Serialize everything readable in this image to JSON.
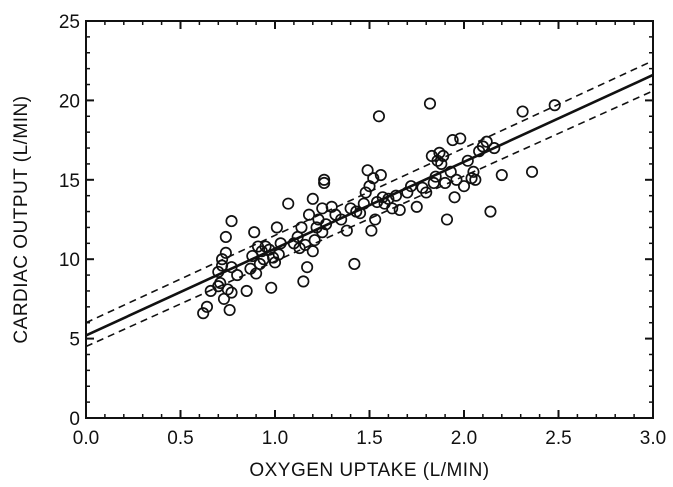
{
  "chart_data": {
    "type": "scatter",
    "title": "",
    "xlabel": "OXYGEN UPTAKE (L/MIN)",
    "ylabel": "CARDIAC OUTPUT (L/MIN)",
    "xlim": [
      0.0,
      3.0
    ],
    "ylim": [
      0,
      25
    ],
    "x_ticks": [
      0.0,
      0.5,
      1.0,
      1.5,
      2.0,
      2.5,
      3.0
    ],
    "x_tick_labels": [
      "0.0",
      "0.5",
      "1.0",
      "1.5",
      "2.0",
      "2.5",
      "3.0"
    ],
    "y_ticks": [
      0,
      5,
      10,
      15,
      20,
      25
    ],
    "y_tick_labels": [
      "0",
      "5",
      "10",
      "15",
      "20",
      "25"
    ],
    "grid": false,
    "marker": "open-circle",
    "colors": {
      "ink": "#111111",
      "background": "#ffffff"
    },
    "points": [
      [
        0.62,
        6.6
      ],
      [
        0.64,
        7.0
      ],
      [
        0.66,
        8.0
      ],
      [
        0.7,
        8.3
      ],
      [
        0.7,
        9.2
      ],
      [
        0.71,
        8.5
      ],
      [
        0.72,
        9.6
      ],
      [
        0.72,
        10.0
      ],
      [
        0.73,
        7.5
      ],
      [
        0.74,
        10.4
      ],
      [
        0.74,
        11.4
      ],
      [
        0.75,
        8.1
      ],
      [
        0.76,
        6.8
      ],
      [
        0.77,
        7.9
      ],
      [
        0.77,
        9.5
      ],
      [
        0.77,
        12.4
      ],
      [
        0.8,
        9.0
      ],
      [
        0.85,
        8.0
      ],
      [
        0.87,
        9.4
      ],
      [
        0.88,
        10.2
      ],
      [
        0.89,
        11.7
      ],
      [
        0.9,
        9.1
      ],
      [
        0.91,
        10.8
      ],
      [
        0.92,
        9.7
      ],
      [
        0.93,
        10.5
      ],
      [
        0.94,
        10.0
      ],
      [
        0.95,
        10.8
      ],
      [
        0.97,
        10.6
      ],
      [
        0.98,
        8.2
      ],
      [
        0.99,
        10.1
      ],
      [
        1.0,
        9.8
      ],
      [
        1.01,
        12.0
      ],
      [
        1.02,
        10.3
      ],
      [
        1.03,
        11.0
      ],
      [
        1.07,
        13.5
      ],
      [
        1.1,
        11.0
      ],
      [
        1.12,
        11.4
      ],
      [
        1.13,
        10.7
      ],
      [
        1.14,
        12.0
      ],
      [
        1.15,
        8.6
      ],
      [
        1.16,
        10.9
      ],
      [
        1.17,
        9.5
      ],
      [
        1.18,
        12.8
      ],
      [
        1.2,
        13.8
      ],
      [
        1.2,
        10.5
      ],
      [
        1.21,
        11.2
      ],
      [
        1.22,
        12.0
      ],
      [
        1.23,
        12.5
      ],
      [
        1.25,
        13.2
      ],
      [
        1.25,
        11.7
      ],
      [
        1.26,
        14.8
      ],
      [
        1.26,
        15.0
      ],
      [
        1.27,
        12.2
      ],
      [
        1.3,
        13.3
      ],
      [
        1.32,
        12.8
      ],
      [
        1.35,
        12.5
      ],
      [
        1.38,
        11.8
      ],
      [
        1.4,
        13.2
      ],
      [
        1.42,
        9.7
      ],
      [
        1.43,
        13.0
      ],
      [
        1.45,
        12.9
      ],
      [
        1.47,
        13.5
      ],
      [
        1.48,
        14.2
      ],
      [
        1.49,
        15.6
      ],
      [
        1.5,
        14.6
      ],
      [
        1.51,
        11.8
      ],
      [
        1.52,
        15.1
      ],
      [
        1.53,
        12.5
      ],
      [
        1.54,
        13.6
      ],
      [
        1.55,
        19.0
      ],
      [
        1.56,
        15.3
      ],
      [
        1.57,
        13.9
      ],
      [
        1.58,
        13.5
      ],
      [
        1.6,
        13.8
      ],
      [
        1.62,
        13.2
      ],
      [
        1.64,
        14.0
      ],
      [
        1.66,
        13.1
      ],
      [
        1.7,
        14.2
      ],
      [
        1.72,
        14.6
      ],
      [
        1.75,
        13.3
      ],
      [
        1.78,
        14.5
      ],
      [
        1.8,
        14.2
      ],
      [
        1.82,
        19.8
      ],
      [
        1.83,
        16.5
      ],
      [
        1.84,
        14.8
      ],
      [
        1.85,
        15.2
      ],
      [
        1.86,
        16.2
      ],
      [
        1.87,
        16.7
      ],
      [
        1.88,
        16.0
      ],
      [
        1.89,
        16.5
      ],
      [
        1.9,
        14.8
      ],
      [
        1.91,
        12.5
      ],
      [
        1.93,
        15.5
      ],
      [
        1.94,
        17.5
      ],
      [
        1.95,
        13.9
      ],
      [
        1.96,
        15.0
      ],
      [
        1.98,
        17.6
      ],
      [
        2.0,
        14.6
      ],
      [
        2.02,
        16.2
      ],
      [
        2.04,
        15.1
      ],
      [
        2.05,
        15.5
      ],
      [
        2.06,
        15.0
      ],
      [
        2.08,
        16.8
      ],
      [
        2.1,
        17.1
      ],
      [
        2.12,
        17.4
      ],
      [
        2.14,
        13.0
      ],
      [
        2.16,
        17.0
      ],
      [
        2.2,
        15.3
      ],
      [
        2.31,
        19.3
      ],
      [
        2.36,
        15.5
      ],
      [
        2.48,
        19.7
      ]
    ],
    "regression_line": {
      "x": [
        0.0,
        3.0
      ],
      "y": [
        5.2,
        21.6
      ]
    },
    "confidence_upper": {
      "x": [
        0.0,
        3.0
      ],
      "y": [
        6.0,
        22.5
      ]
    },
    "confidence_lower": {
      "x": [
        0.0,
        3.0
      ],
      "y": [
        4.5,
        20.6
      ]
    }
  }
}
